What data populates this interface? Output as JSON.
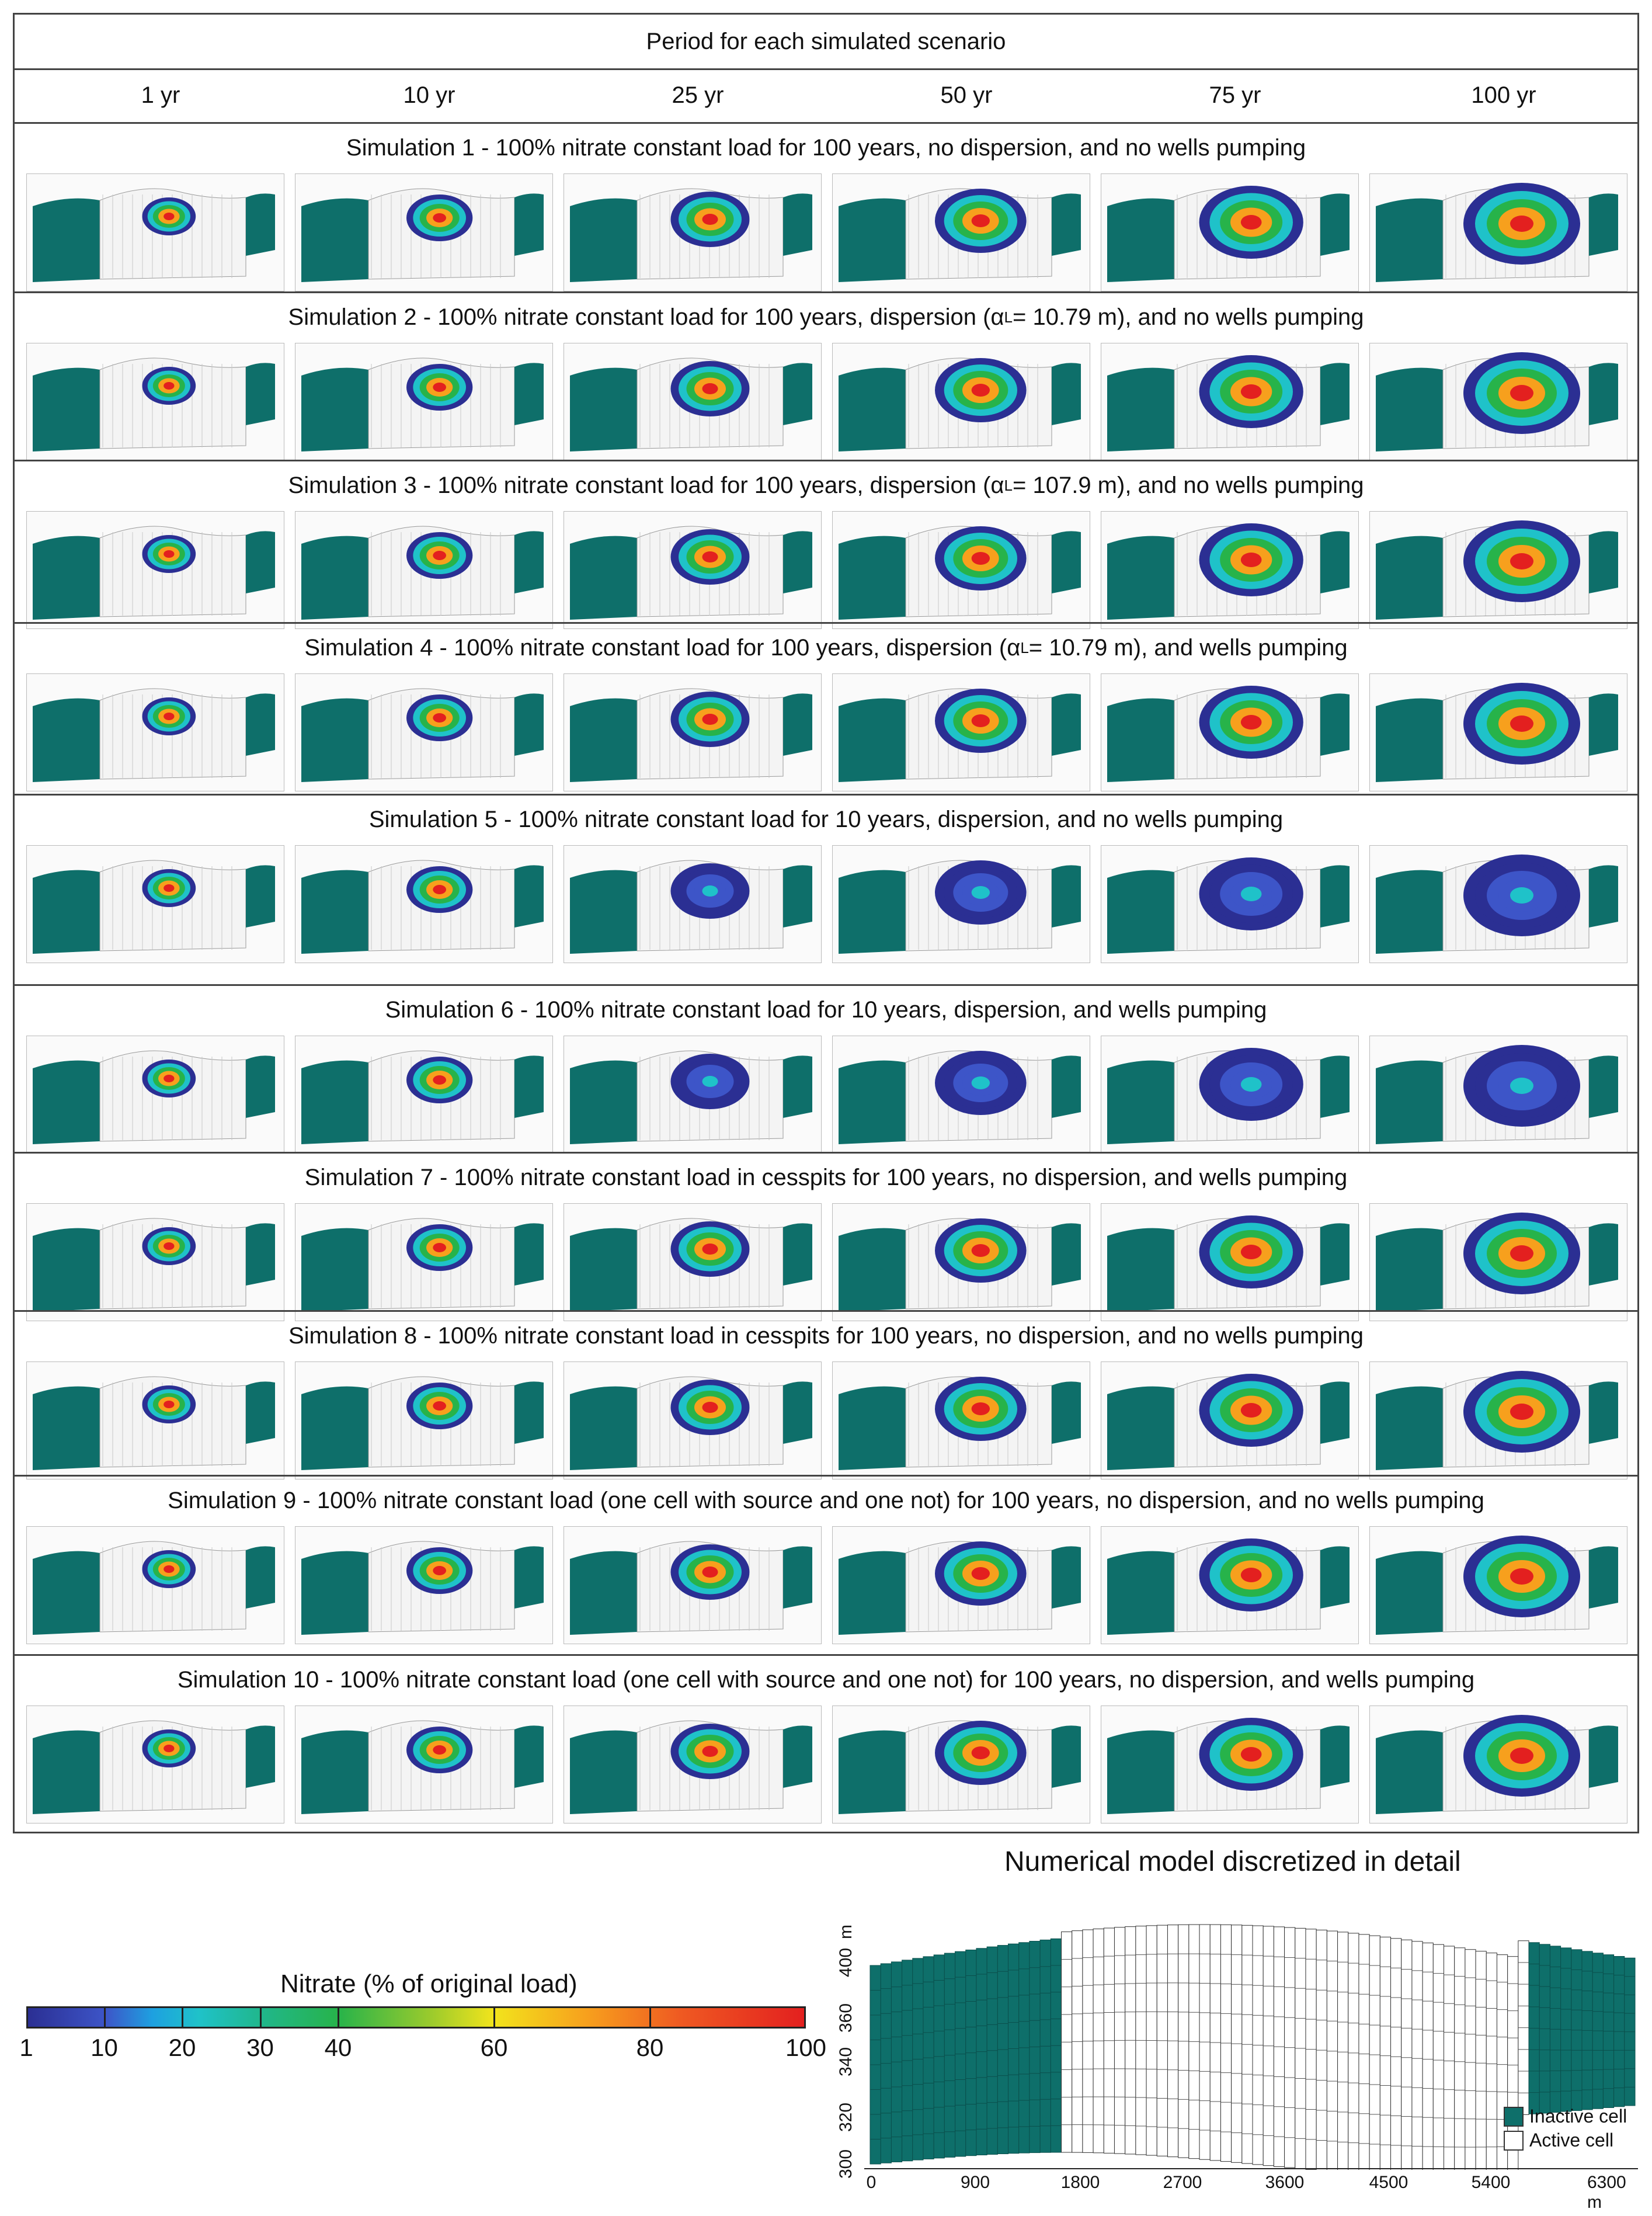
{
  "header": {
    "period_label": "Period for each simulated scenario",
    "columns": [
      "1 yr",
      "10 yr",
      "25 yr",
      "50 yr",
      "75 yr",
      "100 yr"
    ]
  },
  "simulations": [
    {
      "title": "Simulation 1 - 100% nitrate constant load for 100 years, no dispersion, and no wells pumping"
    },
    {
      "title": "Simulation 2 - 100% nitrate constant load for 100 years, dispersion (αL = 10.79 m), and no wells pumping"
    },
    {
      "title": "Simulation 3 - 100% nitrate constant load for 100 years, dispersion (αL = 107.9 m), and no wells pumping"
    },
    {
      "title": "Simulation 4 - 100% nitrate constant load for 100 years, dispersion (αL = 10.79 m), and wells pumping"
    },
    {
      "title": "Simulation 5 - 100% nitrate constant load for 10 years, dispersion, and no wells pumping"
    },
    {
      "title": "Simulation 6 - 100% nitrate constant load for 10 years, dispersion, and wells pumping"
    },
    {
      "title": "Simulation 7 - 100% nitrate constant load in cesspits for 100 years, no dispersion, and wells pumping"
    },
    {
      "title": "Simulation 8 - 100% nitrate constant load in cesspits for 100 years, no dispersion, and no wells pumping"
    },
    {
      "title": "Simulation 9 - 100% nitrate constant load (one cell with source and one not) for 100 years, no dispersion, and no wells pumping"
    },
    {
      "title": "Simulation 10 - 100% nitrate constant load (one cell with source and one not) for 100 years, no dispersion, and wells pumping"
    }
  ],
  "legend": {
    "title": "Nitrate (% of original load)",
    "ticks": [
      "1",
      "10",
      "20",
      "30",
      "40",
      "60",
      "80",
      "100"
    ]
  },
  "detail": {
    "title": "Numerical model discretized in detail",
    "y_unit": "m",
    "y_ticks": [
      "300",
      "320",
      "340",
      "360",
      "400"
    ],
    "x_ticks": [
      "0",
      "900",
      "1800",
      "2700",
      "3600",
      "4500",
      "5400",
      "6300 m"
    ],
    "key_inactive": "Inactive cell",
    "key_active": "Active cell"
  },
  "colors": {
    "inactive": "#0e6f6a",
    "plume_low": "#2b2f93",
    "plume_high": "#e3201f"
  }
}
